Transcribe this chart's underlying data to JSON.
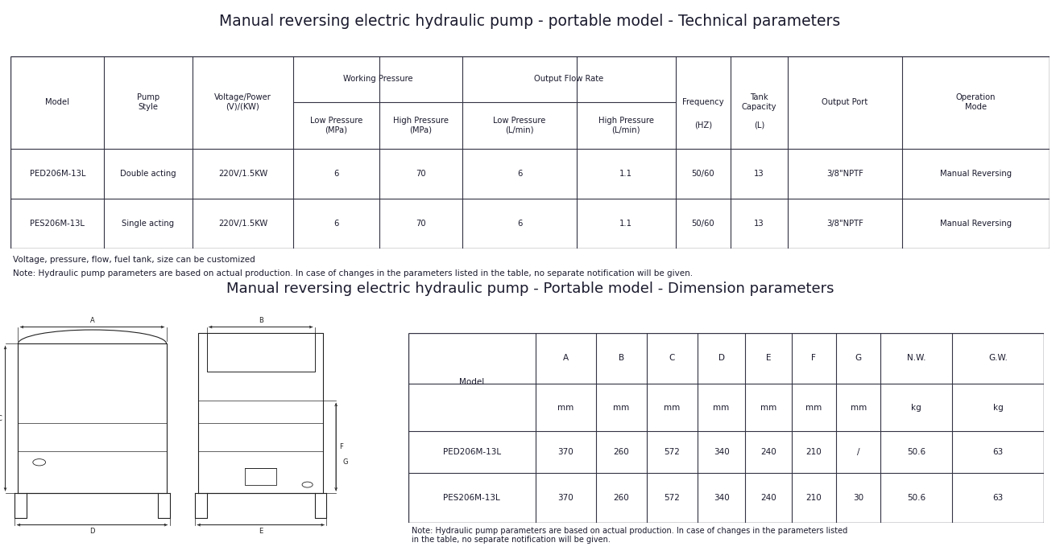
{
  "title1": "Manual reversing electric hydraulic pump - portable model - Technical parameters",
  "title2": "Manual reversing electric hydraulic pump - Portable model - Dimension parameters",
  "tech_table": {
    "data": [
      [
        "PED206M-13L",
        "Double acting",
        "220V/1.5KW",
        "6",
        "70",
        "6",
        "1.1",
        "50/60",
        "13",
        "3/8\"NPTF",
        "Manual Reversing"
      ],
      [
        "PES206M-13L",
        "Single acting",
        "220V/1.5KW",
        "6",
        "70",
        "6",
        "1.1",
        "50/60",
        "13",
        "3/8\"NPTF",
        "Manual Reversing"
      ]
    ]
  },
  "note1": "Voltage, pressure, flow, fuel tank, size can be customized",
  "note2": "Note: Hydraulic pump parameters are based on actual production. In case of changes in the parameters listed in the table, no separate notification will be given.",
  "dim_table": {
    "data": [
      [
        "PED206M-13L",
        "370",
        "260",
        "572",
        "340",
        "240",
        "210",
        "/",
        "50.6",
        "63"
      ],
      [
        "PES206M-13L",
        "370",
        "260",
        "572",
        "340",
        "240",
        "210",
        "30",
        "50.6",
        "63"
      ]
    ]
  },
  "dim_note": "Note: Hydraulic pump parameters are based on actual production. In case of changes in the parameters listed\nin the table, no separate notification will be given.",
  "text_color": "#1a1a2e",
  "bg_color": "#FFFFFF",
  "line_color": "#333344"
}
